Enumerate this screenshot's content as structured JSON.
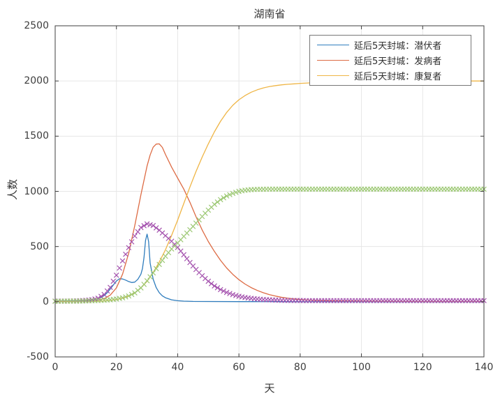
{
  "chart": {
    "title": "湖南省",
    "xlabel": "天",
    "ylabel": "人数"
  },
  "legend": {
    "items": [
      {
        "label": "延后5天封城：潜伏者",
        "color": "#2e7cbd"
      },
      {
        "label": "延后5天封城：发病者",
        "color": "#dd6b44"
      },
      {
        "label": "延后5天封城：康复者",
        "color": "#efb545"
      }
    ]
  },
  "colors": {
    "grid": "#e6e6e6",
    "axis": "#3f3f3f",
    "text": "#3d3d3d",
    "background": "#ffffff"
  },
  "chart_data": {
    "type": "line",
    "title": "湖南省",
    "xlabel": "天",
    "ylabel": "人数",
    "xlim": [
      0,
      140
    ],
    "ylim": [
      -500,
      2500
    ],
    "xticks": [
      0,
      20,
      40,
      60,
      80,
      100,
      120,
      140
    ],
    "yticks": [
      -500,
      0,
      500,
      1000,
      1500,
      2000,
      2500
    ],
    "grid": true,
    "legend_position": "top-right",
    "series": [
      {
        "name": "延后5天封城：潜伏者",
        "style": "line",
        "color": "#2e7cbd",
        "in_legend": true,
        "x": [
          0,
          4,
          8,
          10,
          12,
          14,
          15,
          16,
          17,
          18,
          19,
          20,
          21,
          22,
          23,
          24,
          25,
          26,
          27,
          28,
          28.5,
          29,
          29.5,
          30,
          30.5,
          31,
          32,
          33,
          34,
          35,
          36,
          38,
          40,
          42,
          45,
          50,
          60,
          80,
          140
        ],
        "y": [
          3,
          4,
          6,
          9,
          14,
          26,
          38,
          56,
          82,
          115,
          152,
          188,
          208,
          206,
          196,
          183,
          174,
          178,
          203,
          250,
          300,
          400,
          555,
          612,
          545,
          350,
          205,
          128,
          82,
          53,
          36,
          17,
          9,
          5,
          3,
          2,
          1,
          1,
          1
        ]
      },
      {
        "name": "延后5天封城：发病者",
        "style": "line",
        "color": "#dd6b44",
        "in_legend": true,
        "x": [
          0,
          4,
          8,
          10,
          12,
          14,
          16,
          18,
          20,
          22,
          24,
          26,
          28,
          30,
          31,
          32,
          33,
          34,
          35,
          36,
          38,
          40,
          42,
          44,
          46,
          48,
          50,
          52,
          54,
          56,
          58,
          60,
          62,
          64,
          66,
          68,
          70,
          72,
          74,
          76,
          78,
          80,
          85,
          90,
          95,
          100,
          110,
          120,
          130,
          140
        ],
        "y": [
          2,
          2,
          3,
          5,
          8,
          14,
          28,
          60,
          125,
          250,
          440,
          690,
          970,
          1230,
          1330,
          1400,
          1428,
          1430,
          1398,
          1335,
          1220,
          1120,
          1020,
          900,
          770,
          650,
          545,
          455,
          375,
          305,
          248,
          200,
          160,
          128,
          102,
          81,
          64,
          51,
          40,
          32,
          25,
          20,
          12,
          8,
          6,
          5,
          3,
          2,
          2,
          2
        ]
      },
      {
        "name": "延后5天封城：康复者",
        "style": "line",
        "color": "#efb545",
        "in_legend": true,
        "x": [
          0,
          5,
          10,
          14,
          16,
          18,
          20,
          22,
          24,
          26,
          28,
          30,
          32,
          34,
          36,
          38,
          40,
          42,
          44,
          46,
          48,
          50,
          52,
          54,
          56,
          58,
          60,
          62,
          64,
          66,
          68,
          70,
          72,
          74,
          76,
          78,
          80,
          85,
          90,
          95,
          100,
          110,
          120,
          130,
          140
        ],
        "y": [
          0,
          1,
          2,
          4,
          7,
          12,
          20,
          32,
          52,
          82,
          125,
          185,
          265,
          360,
          470,
          600,
          740,
          890,
          1040,
          1180,
          1310,
          1430,
          1540,
          1635,
          1715,
          1780,
          1830,
          1868,
          1898,
          1920,
          1937,
          1950,
          1958,
          1965,
          1970,
          1974,
          1978,
          1985,
          1990,
          1994,
          1996,
          1999,
          2000,
          2000,
          2000
        ]
      },
      {
        "name": "unlabeled-purple-x-markers",
        "style": "marker-x",
        "color": "#a452ae",
        "in_legend": false,
        "x": [
          0,
          2,
          4,
          6,
          8,
          10,
          12,
          14,
          16,
          18,
          20,
          22,
          24,
          26,
          28,
          30,
          32,
          34,
          36,
          38,
          40,
          42,
          44,
          46,
          48,
          50,
          52,
          54,
          56,
          58,
          60,
          62,
          64,
          66,
          68,
          70,
          72,
          74,
          76,
          78,
          80,
          82,
          84,
          86,
          88,
          90,
          92,
          94,
          96,
          98,
          100,
          102,
          104,
          106,
          108,
          110,
          112,
          114,
          116,
          118,
          120,
          122,
          124,
          126,
          128,
          130,
          132,
          134,
          136,
          138,
          140
        ],
        "y": [
          5,
          5,
          6,
          7,
          9,
          12,
          18,
          32,
          65,
          130,
          240,
          370,
          490,
          595,
          672,
          705,
          690,
          648,
          598,
          548,
          492,
          425,
          355,
          292,
          235,
          185,
          143,
          110,
          84,
          64,
          49,
          38,
          30,
          24,
          20,
          17,
          15,
          13,
          12,
          11,
          11,
          10,
          10,
          10,
          10,
          10,
          10,
          10,
          10,
          10,
          10,
          10,
          10,
          10,
          10,
          10,
          10,
          10,
          10,
          10,
          10,
          10,
          10,
          10,
          10,
          10,
          10,
          10,
          10,
          10,
          10
        ]
      },
      {
        "name": "unlabeled-green-x-markers",
        "style": "marker-x",
        "color": "#9cc873",
        "in_legend": false,
        "x": [
          0,
          2,
          4,
          6,
          8,
          10,
          12,
          14,
          16,
          18,
          20,
          22,
          24,
          26,
          28,
          30,
          32,
          34,
          36,
          38,
          40,
          42,
          44,
          46,
          48,
          50,
          52,
          54,
          56,
          58,
          60,
          62,
          64,
          66,
          68,
          70,
          72,
          74,
          76,
          78,
          80,
          82,
          84,
          86,
          88,
          90,
          92,
          94,
          96,
          98,
          100,
          102,
          104,
          106,
          108,
          110,
          112,
          114,
          116,
          118,
          120,
          122,
          124,
          126,
          128,
          130,
          132,
          134,
          136,
          138,
          140
        ],
        "y": [
          4,
          4,
          5,
          5,
          6,
          7,
          9,
          11,
          14,
          18,
          25,
          35,
          52,
          80,
          125,
          190,
          262,
          338,
          412,
          478,
          532,
          592,
          652,
          712,
          772,
          830,
          882,
          925,
          958,
          982,
          1000,
          1010,
          1016,
          1018,
          1019,
          1020,
          1020,
          1020,
          1020,
          1020,
          1020,
          1020,
          1020,
          1020,
          1020,
          1020,
          1020,
          1020,
          1020,
          1020,
          1020,
          1020,
          1020,
          1020,
          1020,
          1020,
          1020,
          1020,
          1020,
          1020,
          1020,
          1020,
          1020,
          1020,
          1020,
          1020,
          1020,
          1020,
          1020,
          1020,
          1020
        ]
      }
    ]
  }
}
